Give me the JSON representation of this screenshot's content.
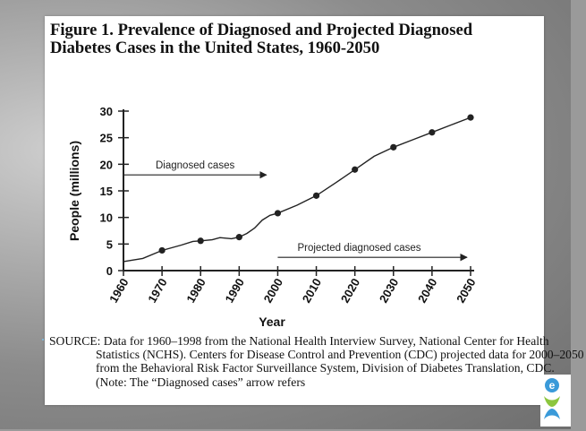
{
  "figure": {
    "title": "Figure 1. Prevalence of Diagnosed and Projected Diagnosed Diabetes Cases in the United States, 1960-2050",
    "source": "SOURCE: Data for 1960–1998 from the National Health Interview Survey, National Center for Health Statistics (NCHS). Centers for Disease Control and Prevention (CDC) projected data for 2000–2050 from the Behavioral Risk Factor Surveillance System, Division of Diabetes Translation, CDC. (Note: The “Diagnosed cases” arrow refers"
  },
  "brand": {
    "logo_letter": "e",
    "logo_colors": [
      "#3a9ad9",
      "#8cc63f"
    ]
  },
  "chart_data": {
    "type": "line",
    "xlabel": "Year",
    "ylabel": "People (millions)",
    "xlim": [
      1960,
      2050
    ],
    "ylim": [
      0,
      30
    ],
    "x_ticks": [
      1960,
      1970,
      1980,
      1990,
      2000,
      2010,
      2020,
      2030,
      2040,
      2050
    ],
    "y_ticks": [
      0,
      5,
      10,
      15,
      20,
      25,
      30
    ],
    "grid": false,
    "series": [
      {
        "x": [
          1960,
          1965,
          1970,
          1975,
          1978,
          1980,
          1983,
          1985,
          1988,
          1990,
          1992,
          1994,
          1996,
          1998,
          2000,
          2005,
          2010,
          2015,
          2020,
          2025,
          2030,
          2035,
          2040,
          2045,
          2050
        ],
        "y": [
          1.7,
          2.3,
          3.8,
          4.8,
          5.5,
          5.6,
          5.8,
          6.2,
          6.0,
          6.3,
          7.0,
          8.0,
          9.5,
          10.4,
          10.8,
          12.3,
          14.1,
          16.5,
          19.0,
          21.5,
          23.2,
          24.6,
          26.0,
          27.4,
          28.8
        ],
        "markers_x": [
          1970,
          1980,
          1990,
          2000,
          2010,
          2020,
          2030,
          2040,
          2050
        ],
        "markers_y": [
          3.8,
          5.6,
          6.3,
          10.8,
          14.1,
          19.0,
          23.2,
          26.0,
          28.8
        ]
      }
    ],
    "annotations": [
      {
        "text": "Diagnosed cases",
        "arrow_from_x": 1960,
        "arrow_to_x": 1998,
        "y": 18
      },
      {
        "text": "Projected diagnosed cases",
        "arrow_from_x": 2000,
        "arrow_to_x": 2050,
        "y": 2.5
      }
    ],
    "color": "#222222"
  }
}
